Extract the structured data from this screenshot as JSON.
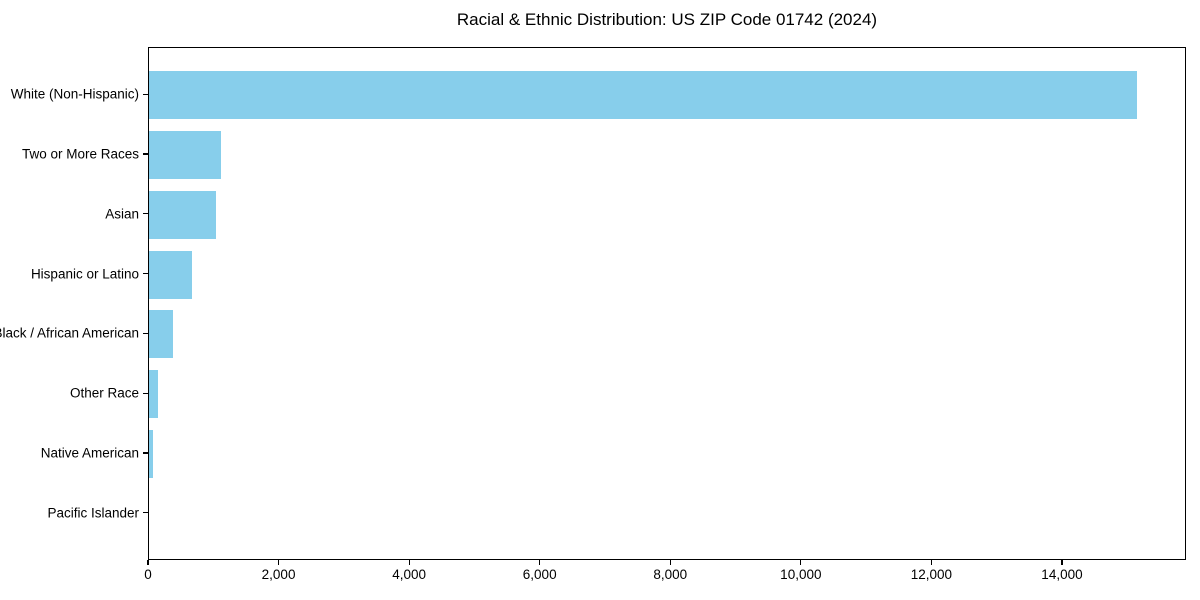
{
  "title": "Racial & Ethnic Distribution: US ZIP Code 01742 (2024)",
  "chart_data": {
    "type": "bar",
    "orientation": "horizontal",
    "title": "Racial & Ethnic Distribution: US ZIP Code 01742 (2024)",
    "categories": [
      "White (Non-Hispanic)",
      "Two or More Races",
      "Asian",
      "Hispanic or Latino",
      "Black / African American",
      "Other Race",
      "Native American",
      "Pacific Islander"
    ],
    "values": [
      15140,
      1110,
      1020,
      660,
      370,
      135,
      55,
      0
    ],
    "xlabel": "",
    "ylabel": "",
    "xlim": [
      0,
      15900
    ],
    "x_ticks": [
      0,
      2000,
      4000,
      6000,
      8000,
      10000,
      12000,
      14000
    ],
    "x_tick_labels": [
      "0",
      "2,000",
      "4,000",
      "6,000",
      "8,000",
      "10,000",
      "12,000",
      "14,000"
    ],
    "bar_color": "#87CEEB",
    "text_color": "#000000",
    "grid": false,
    "legend_position": "none"
  }
}
